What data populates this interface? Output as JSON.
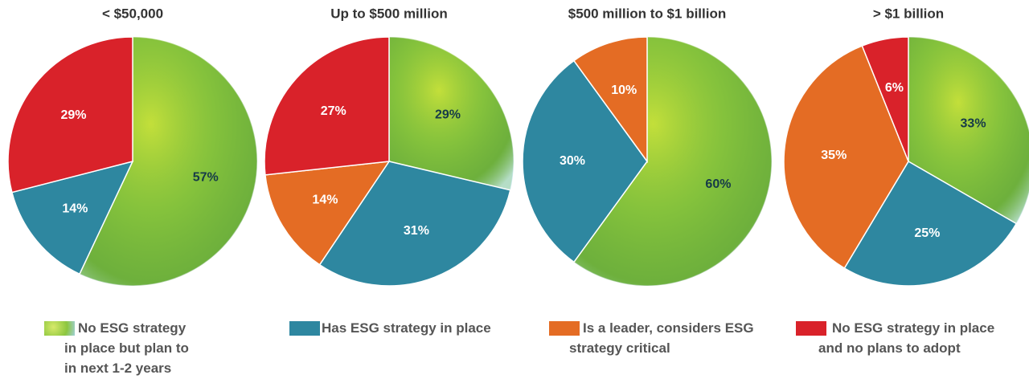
{
  "legend": [
    {
      "name": "No ESG strategy in place but plan to in next 1-2 years",
      "color": "#8cc63f"
    },
    {
      "name": "Has ESG strategy in place",
      "color": "#2e87a0"
    },
    {
      "name": "Is a leader, considers ESG strategy critical",
      "color": "#e46c24"
    },
    {
      "name": "No ESG strategy in place and no plans to adopt",
      "color": "#d9222a"
    }
  ],
  "chart_data": [
    {
      "type": "pie",
      "title": "< $50,000",
      "values": [
        57,
        14,
        null,
        29
      ],
      "value_labels": [
        "57%",
        "14%",
        null,
        "29%"
      ]
    },
    {
      "type": "pie",
      "title": "Up to $500 million",
      "values": [
        29,
        31,
        14,
        27
      ],
      "value_labels": [
        "29%",
        "31%",
        "14%",
        "27%"
      ]
    },
    {
      "type": "pie",
      "title": "$500 million to $1 billion",
      "values": [
        60,
        30,
        10,
        null
      ],
      "value_labels": [
        "60%",
        "30%",
        "10%",
        null
      ]
    },
    {
      "type": "pie",
      "title": "> $1 billion",
      "values": [
        33,
        25,
        35,
        6
      ],
      "value_labels": [
        "33%",
        "25%",
        "35%",
        "6%"
      ]
    }
  ]
}
